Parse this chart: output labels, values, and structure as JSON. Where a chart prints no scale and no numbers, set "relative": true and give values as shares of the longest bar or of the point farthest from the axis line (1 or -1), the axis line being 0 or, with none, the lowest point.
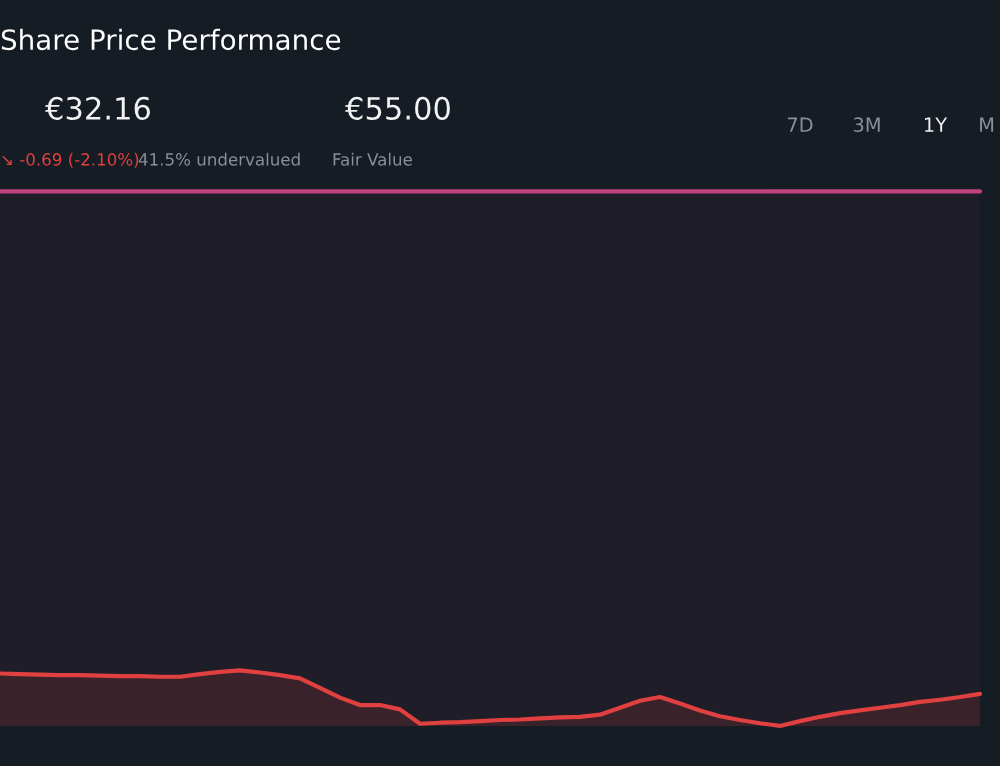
{
  "chart_data": {
    "type": "area",
    "title": "Share Price Performance",
    "relative": true,
    "annotations": [
      "€32.16",
      "↘ -0.69 (-2.10%)",
      "41.5% undervalued",
      "€55.00",
      "Fair Value",
      "7D",
      "3M",
      "1Y",
      "M"
    ],
    "categories": [
      null,
      null,
      null,
      null,
      null,
      null,
      null,
      null,
      null,
      null,
      null,
      null,
      null,
      null,
      null,
      null,
      null,
      null,
      null,
      null,
      null,
      null,
      null,
      null,
      null,
      null,
      null,
      null,
      null,
      null,
      null,
      null,
      null,
      null,
      null,
      null,
      null,
      null,
      null,
      null,
      null,
      null,
      null,
      null,
      null,
      null,
      null,
      null,
      null,
      null
    ],
    "series": [
      {
        "color": "#c2417f",
        "values": [
          1,
          1,
          1,
          1,
          1,
          1,
          1,
          1,
          1,
          1,
          1,
          1,
          1,
          1,
          1,
          1,
          1,
          1,
          1,
          1,
          1,
          1,
          1,
          1,
          1,
          1,
          1,
          1,
          1,
          1,
          1,
          1,
          1,
          1,
          1,
          1,
          1,
          1,
          1,
          1,
          1,
          1,
          1,
          1,
          1,
          1,
          1,
          1,
          1,
          1
        ]
      },
      {
        "color": "#e0403f",
        "values": [
          0.098,
          0.097,
          0.096,
          0.095,
          0.095,
          0.094,
          0.093,
          0.093,
          0.092,
          0.092,
          0.097,
          0.101,
          0.104,
          0.1,
          0.095,
          0.089,
          0.071,
          0.053,
          0.039,
          0.039,
          0.031,
          0.004,
          0.006,
          0.007,
          0.009,
          0.011,
          0.012,
          0.014,
          0.016,
          0.017,
          0.021,
          0.034,
          0.047,
          0.054,
          0.042,
          0.029,
          0.018,
          0.011,
          0.005,
          0.0,
          0.009,
          0.017,
          0.024,
          0.029,
          0.034,
          0.039,
          0.045,
          0.049,
          0.054,
          0.06
        ]
      }
    ]
  }
}
